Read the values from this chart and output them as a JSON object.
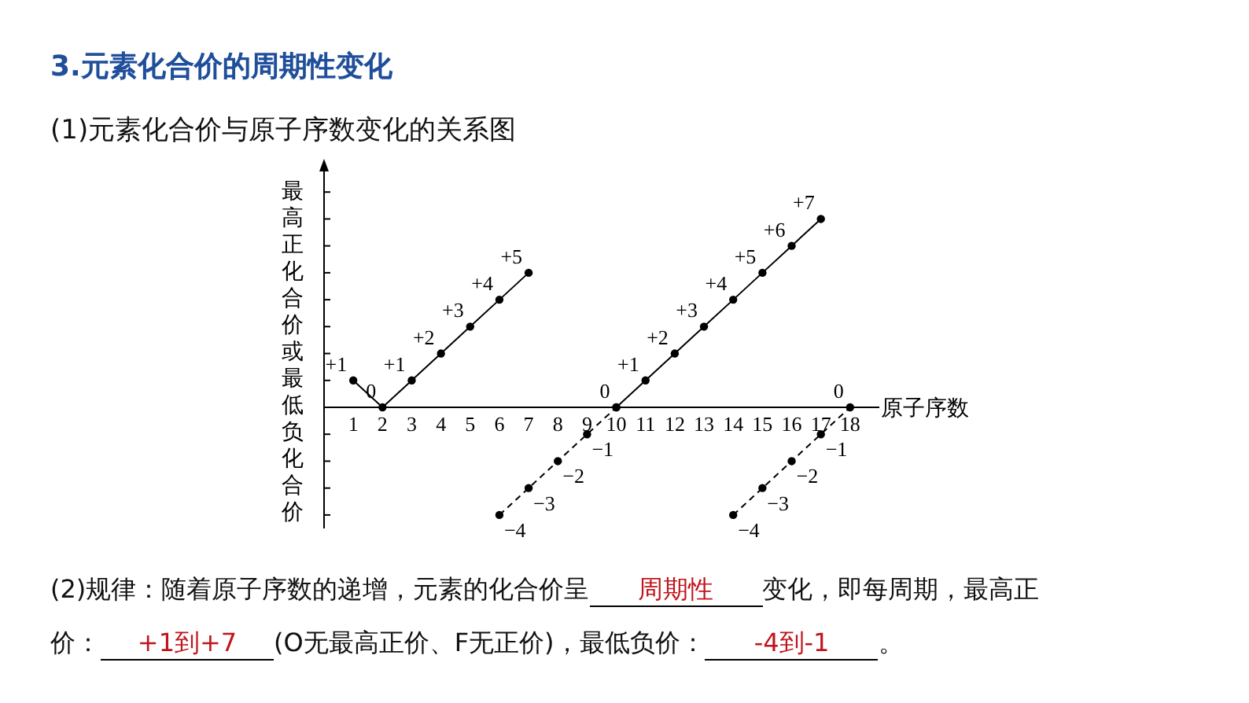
{
  "chart_data": {
    "type": "line",
    "title": "3.元素化合价的周期性变化",
    "subtitle": "(1)元素化合价与原子序数变化的关系图",
    "xlabel": "原子序数",
    "ylabel": "最高正化合价或最低负化合价",
    "xlim": [
      0,
      19
    ],
    "xticks": [
      1,
      2,
      3,
      4,
      5,
      6,
      7,
      8,
      9,
      10,
      11,
      12,
      13,
      14,
      15,
      16,
      17,
      18
    ],
    "ylim": [
      -4.5,
      9
    ],
    "yticks": [
      {
        "value": -4,
        "label": null
      },
      {
        "value": -3,
        "label": null
      },
      {
        "value": -2,
        "label": null
      },
      {
        "value": -1,
        "label": null
      },
      {
        "value": 1,
        "label": null
      },
      {
        "value": 2,
        "label": null
      },
      {
        "value": 3,
        "label": null
      },
      {
        "value": 4,
        "label": null
      },
      {
        "value": 5,
        "label": null
      },
      {
        "value": 6,
        "label": null
      },
      {
        "value": 7,
        "label": null
      },
      {
        "value": 8,
        "label": null
      }
    ],
    "tick_labels": "x",
    "marker": "circle",
    "grid": false,
    "series": [
      {
        "color": "#000000",
        "line_style": "solid",
        "x": [
          1,
          2,
          3,
          4,
          5,
          6,
          7
        ],
        "values": [
          1,
          0,
          1,
          2,
          3,
          4,
          5
        ],
        "value_labels": [
          "+1",
          "0",
          "+1",
          "+2",
          "+3",
          "+4",
          "+5"
        ]
      },
      {
        "color": "#000000",
        "line_style": "solid",
        "x": [
          10,
          11,
          12,
          13,
          14,
          15,
          16,
          17
        ],
        "values": [
          0,
          1,
          2,
          3,
          4,
          5,
          6,
          7
        ],
        "value_labels": [
          "0",
          "+1",
          "+2",
          "+3",
          "+4",
          "+5",
          "+6",
          "+7"
        ]
      },
      {
        "color": "#000000",
        "line_style": "dashed",
        "x": [
          6,
          7,
          8,
          9,
          10
        ],
        "values": [
          -4,
          -3,
          -2,
          -1,
          0
        ],
        "value_labels": [
          "−4",
          "−3",
          "−2",
          "−1",
          null
        ]
      },
      {
        "color": "#000000",
        "line_style": "dashed",
        "x": [
          14,
          15,
          16,
          17,
          18
        ],
        "values": [
          -4,
          -3,
          -2,
          -1,
          0
        ],
        "value_labels": [
          "−4",
          "−3",
          "−2",
          "−1",
          "0"
        ]
      }
    ],
    "annotations": [
      "(2)规律：随着原子序数的递增，元素的化合价呈",
      "周期性",
      "变化，即每周期，最高正",
      "价：",
      "+1到+7",
      "(O无最高正价、F无正价)，最低负价：",
      "-4到-1",
      "。"
    ]
  }
}
